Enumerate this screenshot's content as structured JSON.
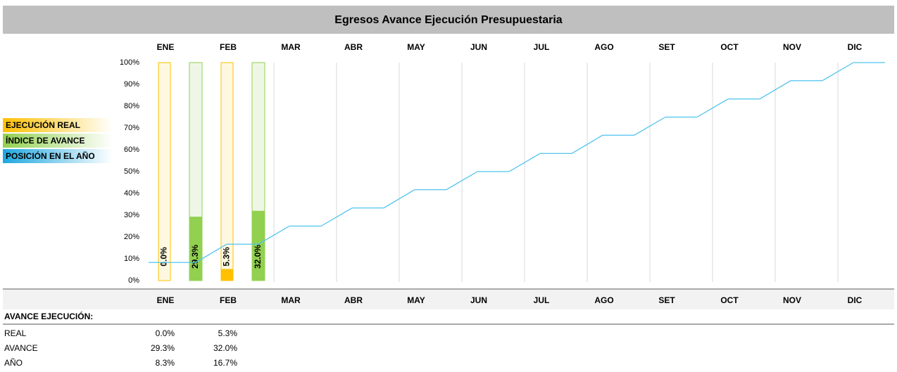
{
  "chart_data": {
    "type": "bar",
    "title": "Egresos Avance Ejecución Presupuestaria",
    "categories": [
      "ENE",
      "FEB",
      "MAR",
      "ABR",
      "MAY",
      "JUN",
      "JUL",
      "AGO",
      "SET",
      "OCT",
      "NOV",
      "DIC"
    ],
    "series": [
      {
        "name": "EJECUCIÓN REAL",
        "color": "#ffc000",
        "values": [
          0.0,
          5.3,
          null,
          null,
          null,
          null,
          null,
          null,
          null,
          null,
          null,
          null
        ],
        "value_labels": [
          "0.0%",
          "5.3%",
          null,
          null,
          null,
          null,
          null,
          null,
          null,
          null,
          null,
          null
        ]
      },
      {
        "name": "ÍNDICE DE AVANCE",
        "color": "#92d050",
        "values": [
          29.3,
          32.0,
          null,
          null,
          null,
          null,
          null,
          null,
          null,
          null,
          null,
          null
        ],
        "value_labels": [
          "29.3%",
          "32.0%",
          null,
          null,
          null,
          null,
          null,
          null,
          null,
          null,
          null,
          null
        ]
      },
      {
        "name": "POSICIÓN EN EL AÑO",
        "color": "#4ec3ee",
        "type": "line",
        "values": [
          8.3,
          16.7,
          25,
          33.3,
          41.7,
          50,
          58.3,
          66.7,
          75,
          83.3,
          91.7,
          100
        ],
        "value_labels": [
          "8.3%",
          "16.7%",
          null,
          null,
          null,
          null,
          null,
          null,
          null,
          null,
          null,
          null
        ]
      }
    ],
    "ylim": [
      0,
      100
    ],
    "yticks": [
      {
        "value": 0,
        "label": "0%"
      },
      {
        "value": 10,
        "label": "10%"
      },
      {
        "value": 20,
        "label": "20%"
      },
      {
        "value": 30,
        "label": "30%"
      },
      {
        "value": 40,
        "label": "40%"
      },
      {
        "value": 50,
        "label": "50%"
      },
      {
        "value": 60,
        "label": "60%"
      },
      {
        "value": 70,
        "label": "70%"
      },
      {
        "value": 80,
        "label": "80%"
      },
      {
        "value": 90,
        "label": "90%"
      },
      {
        "value": 100,
        "label": "100%"
      }
    ],
    "grid": true
  },
  "table": {
    "title": "AVANCE EJECUCIÓN:",
    "rows": [
      "REAL",
      "AVANCE",
      "AÑO"
    ]
  }
}
